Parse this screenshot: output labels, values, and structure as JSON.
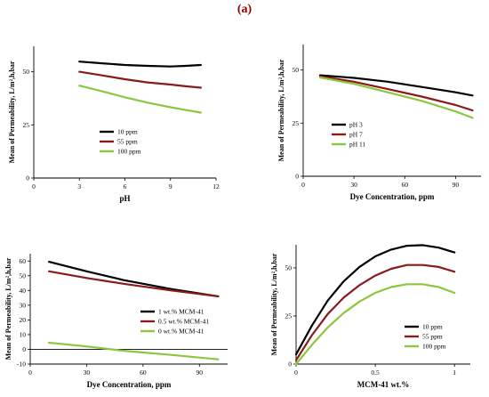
{
  "figure_label": "(a)",
  "chart_data": [
    {
      "type": "line",
      "xlabel": "pH",
      "ylabel": "Mean of Permeability,  L/m²,h,bar",
      "xlim": [
        0,
        12
      ],
      "ylim": [
        0,
        62
      ],
      "xticks": [
        0,
        3,
        6,
        9,
        12
      ],
      "yticks": [
        0,
        25,
        50
      ],
      "grid": false,
      "legend_position": "center",
      "series": [
        {
          "name": "10 ppm",
          "color": "#000000",
          "x": [
            3,
            4.5,
            6,
            7.5,
            9,
            10,
            11
          ],
          "y": [
            54.8,
            54,
            53.2,
            52.8,
            52.5,
            52.8,
            53.2
          ]
        },
        {
          "name": "55 ppm",
          "color": "#8b1a1a",
          "x": [
            3,
            4.5,
            6,
            7.5,
            9,
            10,
            11
          ],
          "y": [
            50,
            48.3,
            46.5,
            45,
            44,
            43.2,
            42.5
          ]
        },
        {
          "name": "100 ppm",
          "color": "#8cc63f",
          "x": [
            3,
            4.5,
            6,
            7.5,
            9,
            10,
            11
          ],
          "y": [
            43.5,
            40.8,
            38,
            35.5,
            33.3,
            32,
            30.8
          ]
        }
      ]
    },
    {
      "type": "line",
      "xlabel": "Dye Concentration,  ppm",
      "ylabel": "Mean of Permeability,  L/m²,h,bar",
      "xlim": [
        0,
        105
      ],
      "ylim": [
        0,
        62
      ],
      "xticks": [
        0,
        30,
        60,
        90
      ],
      "yticks": [
        0,
        25,
        50
      ],
      "grid": false,
      "legend_position": "center-left",
      "series": [
        {
          "name": "pH 3",
          "color": "#000000",
          "x": [
            10,
            30,
            50,
            70,
            90,
            100
          ],
          "y": [
            47.5,
            46.3,
            44.5,
            42,
            39.5,
            38
          ]
        },
        {
          "name": "pH 7",
          "color": "#8b1a1a",
          "x": [
            10,
            30,
            50,
            70,
            90,
            100
          ],
          "y": [
            47,
            44.5,
            41,
            37.5,
            33.5,
            31
          ]
        },
        {
          "name": "pH 11",
          "color": "#8cc63f",
          "x": [
            10,
            30,
            50,
            70,
            90,
            100
          ],
          "y": [
            46.5,
            43.5,
            39.5,
            35.5,
            30.5,
            27.5
          ]
        }
      ]
    },
    {
      "type": "line",
      "xlabel": "Dye Concentration,  ppm",
      "ylabel": "Mean of Permeability,  L/m²,h,bar",
      "xlim": [
        0,
        105
      ],
      "ylim": [
        -10,
        65
      ],
      "xticks": [
        0,
        30,
        60,
        90
      ],
      "yticks": [
        -10,
        0,
        10,
        20,
        30,
        40,
        50,
        60
      ],
      "grid": false,
      "legend_position": "bottom-center",
      "series": [
        {
          "name": "1 wt.% MCM-41",
          "color": "#000000",
          "x": [
            10,
            30,
            50,
            75,
            100
          ],
          "y": [
            59.5,
            53,
            47,
            41,
            36
          ]
        },
        {
          "name": "0.5 wt.% MCM-41",
          "color": "#8b1a1a",
          "x": [
            10,
            30,
            50,
            75,
            100
          ],
          "y": [
            53,
            48.5,
            44.5,
            40,
            36
          ]
        },
        {
          "name": "0 wt.% MCM-41",
          "color": "#8cc63f",
          "x": [
            10,
            30,
            50,
            75,
            100
          ],
          "y": [
            4.5,
            2,
            -1,
            -3.8,
            -6.8
          ]
        }
      ]
    },
    {
      "type": "line",
      "xlabel": "MCM-41  wt.%",
      "ylabel": "Mean of Permeability,  L/m²,h,bar",
      "xlim": [
        0,
        1.1
      ],
      "ylim": [
        0,
        62
      ],
      "xticks": [
        0,
        0.5,
        1
      ],
      "yticks": [
        0,
        25,
        50
      ],
      "grid": false,
      "legend_position": "bottom-right",
      "series": [
        {
          "name": "10 ppm",
          "color": "#000000",
          "x": [
            0,
            0.1,
            0.2,
            0.3,
            0.4,
            0.5,
            0.6,
            0.7,
            0.8,
            0.9,
            1.0
          ],
          "y": [
            5,
            20,
            33,
            43,
            50.5,
            56,
            59.5,
            61.5,
            61.8,
            60.5,
            58
          ]
        },
        {
          "name": "55 ppm",
          "color": "#8b1a1a",
          "x": [
            0,
            0.1,
            0.2,
            0.3,
            0.4,
            0.5,
            0.6,
            0.7,
            0.8,
            0.9,
            1.0
          ],
          "y": [
            2,
            15,
            26,
            34.5,
            41,
            46,
            49.5,
            51.5,
            51.5,
            50.5,
            48
          ]
        },
        {
          "name": "100 ppm",
          "color": "#8cc63f",
          "x": [
            0,
            0.1,
            0.2,
            0.3,
            0.4,
            0.5,
            0.6,
            0.7,
            0.8,
            0.9,
            1.0
          ],
          "y": [
            0,
            10,
            19,
            26.5,
            32.5,
            37,
            40,
            41.5,
            41.5,
            40,
            37
          ]
        }
      ]
    }
  ]
}
